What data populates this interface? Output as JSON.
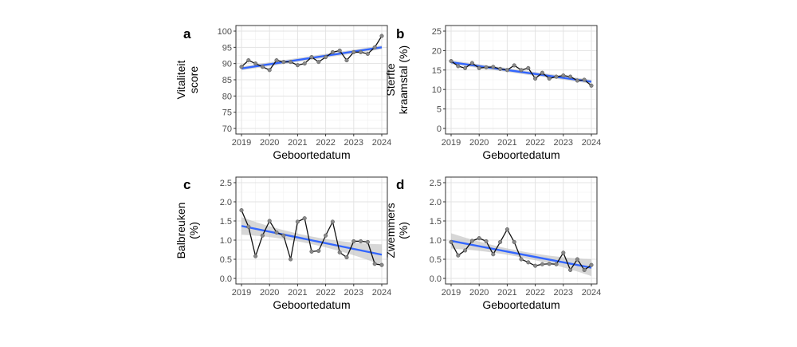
{
  "chart_data": [
    {
      "panel": "a",
      "type": "line",
      "xlabel": "Geboortedatum",
      "ylabel": [
        "Vitaliteit",
        "score"
      ],
      "xlim": [
        2019,
        2024
      ],
      "ylim": [
        70,
        100
      ],
      "xticks": [
        "2019",
        "2020",
        "2021",
        "2022",
        "2023",
        "2024"
      ],
      "yticks": [
        "70",
        "75",
        "80",
        "85",
        "90",
        "95",
        "100"
      ],
      "x": [
        2019.0,
        2019.25,
        2019.5,
        2019.75,
        2020.0,
        2020.25,
        2020.5,
        2020.75,
        2021.0,
        2021.25,
        2021.5,
        2021.75,
        2022.0,
        2022.25,
        2022.5,
        2022.75,
        2023.0,
        2023.25,
        2023.5,
        2023.75,
        2024.0
      ],
      "values": [
        89.0,
        91.0,
        90.0,
        89.0,
        88.0,
        91.0,
        90.5,
        90.5,
        89.5,
        90.0,
        92.0,
        90.5,
        92.0,
        93.5,
        94.0,
        91.0,
        93.5,
        93.5,
        93.0,
        95.0,
        98.5
      ],
      "trend": [
        88.5,
        95.0
      ],
      "band": 0.6,
      "grid": true
    },
    {
      "panel": "b",
      "type": "line",
      "xlabel": "Geboortedatum",
      "ylabel": [
        "Sterfte",
        "kraamstal (%)"
      ],
      "xlim": [
        2019,
        2024
      ],
      "ylim": [
        0,
        25
      ],
      "xticks": [
        "2019",
        "2020",
        "2021",
        "2022",
        "2023",
        "2024"
      ],
      "yticks": [
        "0",
        "5",
        "10",
        "15",
        "20",
        "25"
      ],
      "x": [
        2019.0,
        2019.25,
        2019.5,
        2019.75,
        2020.0,
        2020.25,
        2020.5,
        2020.75,
        2021.0,
        2021.25,
        2021.5,
        2021.75,
        2022.0,
        2022.25,
        2022.5,
        2022.75,
        2023.0,
        2023.25,
        2023.5,
        2023.75,
        2024.0
      ],
      "values": [
        17.3,
        16.0,
        15.5,
        16.8,
        15.5,
        15.7,
        15.8,
        15.3,
        15.0,
        16.2,
        15.0,
        15.5,
        12.8,
        14.3,
        12.8,
        13.3,
        13.6,
        13.3,
        12.3,
        12.5,
        11.0
      ],
      "trend": [
        17.0,
        12.0
      ],
      "band": 0.5,
      "grid": true
    },
    {
      "panel": "c",
      "type": "line",
      "xlabel": "Geboortedatum",
      "ylabel": [
        "Balbreuken",
        "(%)"
      ],
      "xlim": [
        2019,
        2024
      ],
      "ylim": [
        0,
        2.5
      ],
      "xticks": [
        "2019",
        "2020",
        "2021",
        "2022",
        "2023",
        "2024"
      ],
      "yticks": [
        "0.0",
        "0.5",
        "1.0",
        "1.5",
        "2.0",
        "2.5"
      ],
      "x": [
        2019.0,
        2019.25,
        2019.5,
        2019.75,
        2020.0,
        2020.25,
        2020.5,
        2020.75,
        2021.0,
        2021.25,
        2021.5,
        2021.75,
        2022.0,
        2022.25,
        2022.5,
        2022.75,
        2023.0,
        2023.25,
        2023.5,
        2023.75,
        2024.0
      ],
      "values": [
        1.78,
        1.35,
        0.58,
        1.12,
        1.5,
        1.2,
        1.12,
        0.5,
        1.48,
        1.57,
        0.7,
        0.72,
        1.12,
        1.48,
        0.68,
        0.55,
        0.97,
        0.97,
        0.95,
        0.38,
        0.35
      ],
      "trend": [
        1.37,
        0.62
      ],
      "band_start": 0.23,
      "band_mid": 0.1,
      "band_end": 0.27,
      "grid": true
    },
    {
      "panel": "d",
      "type": "line",
      "xlabel": "Geboortedatum",
      "ylabel": [
        "Zwemmers",
        "(%)"
      ],
      "xlim": [
        2019,
        2024
      ],
      "ylim": [
        0,
        2.5
      ],
      "xticks": [
        "2019",
        "2020",
        "2021",
        "2022",
        "2023",
        "2024"
      ],
      "yticks": [
        "0.0",
        "0.5",
        "1.0",
        "1.5",
        "2.0",
        "2.5"
      ],
      "x": [
        2019.0,
        2019.25,
        2019.5,
        2019.75,
        2020.0,
        2020.25,
        2020.5,
        2020.75,
        2021.0,
        2021.25,
        2021.5,
        2021.75,
        2022.0,
        2022.25,
        2022.5,
        2022.75,
        2023.0,
        2023.25,
        2023.5,
        2023.75,
        2024.0
      ],
      "values": [
        0.95,
        0.6,
        0.73,
        0.98,
        1.05,
        0.97,
        0.63,
        0.95,
        1.28,
        0.95,
        0.5,
        0.42,
        0.33,
        0.37,
        0.38,
        0.37,
        0.67,
        0.22,
        0.5,
        0.22,
        0.35
      ],
      "trend": [
        0.98,
        0.28
      ],
      "band_start": 0.2,
      "band_mid": 0.08,
      "band_end": 0.22,
      "grid": true
    }
  ]
}
